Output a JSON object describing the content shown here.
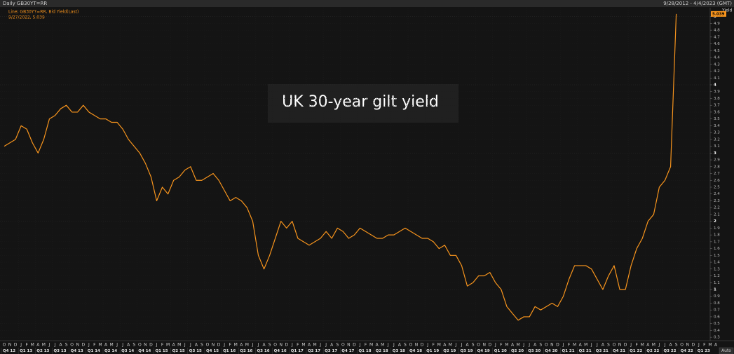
{
  "chart_data": {
    "type": "line",
    "title": "Daily GB30YT=RR",
    "date_range": "9/28/2012 - 4/4/2023 (GMT)",
    "legend_label": "Line; GB30YT=RR, Bid Yield(Last)",
    "legend_detail": "9/27/2022, 5.039",
    "y_axis_label": "Yield",
    "annotation": "UK 30-year gilt yield",
    "button": "Auto",
    "categories": [
      "O",
      "N",
      "D",
      "J",
      "F",
      "M",
      "A",
      "M",
      "J",
      "J",
      "A",
      "S",
      "O",
      "N",
      "D",
      "J",
      "F",
      "M",
      "A",
      "M",
      "J",
      "J",
      "A",
      "S",
      "O",
      "N",
      "D",
      "J",
      "F",
      "M",
      "A",
      "M",
      "J",
      "J",
      "A",
      "S",
      "O",
      "N",
      "D",
      "J",
      "F",
      "M",
      "A",
      "M",
      "J",
      "J",
      "A",
      "S",
      "O",
      "N",
      "D",
      "J",
      "F",
      "M",
      "A",
      "M",
      "J",
      "J",
      "A",
      "S",
      "O",
      "N",
      "D",
      "J",
      "F",
      "M",
      "A",
      "M",
      "J",
      "J",
      "A",
      "S",
      "O",
      "N",
      "D",
      "J",
      "F",
      "M",
      "A",
      "M",
      "J",
      "J",
      "A",
      "S",
      "O",
      "N",
      "D",
      "J",
      "F",
      "M",
      "A",
      "M",
      "J",
      "J",
      "A",
      "S",
      "O",
      "N",
      "D",
      "J",
      "F",
      "M",
      "A",
      "M",
      "J",
      "J",
      "A",
      "S",
      "O",
      "N",
      "D",
      "J",
      "F",
      "M",
      "A",
      "M",
      "J",
      "J",
      "A",
      "S",
      "O",
      "N",
      "D",
      "J",
      "F",
      "M",
      "A"
    ],
    "quarter_labels": [
      "Q4 12",
      "Q1 13",
      "Q2 13",
      "Q3 13",
      "Q4 13",
      "Q1 14",
      "Q2 14",
      "Q3 14",
      "Q4 14",
      "Q1 15",
      "Q2 15",
      "Q3 15",
      "Q4 15",
      "Q1 16",
      "Q2 16",
      "Q3 16",
      "Q4 16",
      "Q1 17",
      "Q2 17",
      "Q3 17",
      "Q4 17",
      "Q1 18",
      "Q2 18",
      "Q3 18",
      "Q4 18",
      "Q1 19",
      "Q2 19",
      "Q3 19",
      "Q4 19",
      "Q1 20",
      "Q2 20",
      "Q3 20",
      "Q4 20",
      "Q1 21",
      "Q2 21",
      "Q3 21",
      "Q4 21",
      "Q1 22",
      "Q2 22",
      "Q3 22",
      "Q4 22",
      "Q1 23"
    ],
    "series": [
      {
        "name": "GB30YT=RR",
        "color": "#f7941d",
        "values": [
          3.1,
          3.15,
          3.2,
          3.4,
          3.35,
          3.15,
          3.0,
          3.2,
          3.5,
          3.55,
          3.65,
          3.7,
          3.6,
          3.6,
          3.7,
          3.6,
          3.55,
          3.5,
          3.5,
          3.45,
          3.45,
          3.35,
          3.2,
          3.1,
          3.0,
          2.85,
          2.65,
          2.3,
          2.5,
          2.4,
          2.6,
          2.65,
          2.75,
          2.8,
          2.6,
          2.6,
          2.65,
          2.7,
          2.6,
          2.45,
          2.3,
          2.35,
          2.3,
          2.2,
          2.0,
          1.5,
          1.3,
          1.5,
          1.75,
          2.0,
          1.9,
          2.0,
          1.75,
          1.7,
          1.65,
          1.7,
          1.75,
          1.85,
          1.75,
          1.9,
          1.85,
          1.75,
          1.8,
          1.9,
          1.85,
          1.8,
          1.75,
          1.75,
          1.8,
          1.8,
          1.85,
          1.9,
          1.85,
          1.8,
          1.75,
          1.75,
          1.7,
          1.6,
          1.65,
          1.5,
          1.5,
          1.35,
          1.05,
          1.1,
          1.2,
          1.2,
          1.25,
          1.1,
          1.0,
          0.75,
          0.65,
          0.55,
          0.6,
          0.6,
          0.75,
          0.7,
          0.75,
          0.8,
          0.75,
          0.9,
          1.15,
          1.35,
          1.35,
          1.35,
          1.3,
          1.15,
          1.0,
          1.2,
          1.35,
          1.0,
          1.0,
          1.35,
          1.6,
          1.75,
          2.0,
          2.1,
          2.5,
          2.6,
          2.8,
          5.039,
          null,
          null,
          null,
          null,
          null,
          null,
          null
        ]
      }
    ],
    "ylim": [
      0.25,
      5.13
    ],
    "yticks": [
      0.3,
      0.4,
      0.5,
      0.6,
      0.7,
      0.8,
      0.9,
      1,
      1.1,
      1.2,
      1.3,
      1.4,
      1.5,
      1.6,
      1.7,
      1.8,
      1.9,
      2,
      2.1,
      2.2,
      2.3,
      2.4,
      2.5,
      2.6,
      2.7,
      2.8,
      2.9,
      3,
      3.1,
      3.2,
      3.3,
      3.4,
      3.5,
      3.6,
      3.7,
      3.8,
      3.9,
      4,
      4.1,
      4.2,
      4.3,
      4.4,
      4.5,
      4.6,
      4.7,
      4.8,
      4.9,
      5
    ],
    "grid": true
  }
}
